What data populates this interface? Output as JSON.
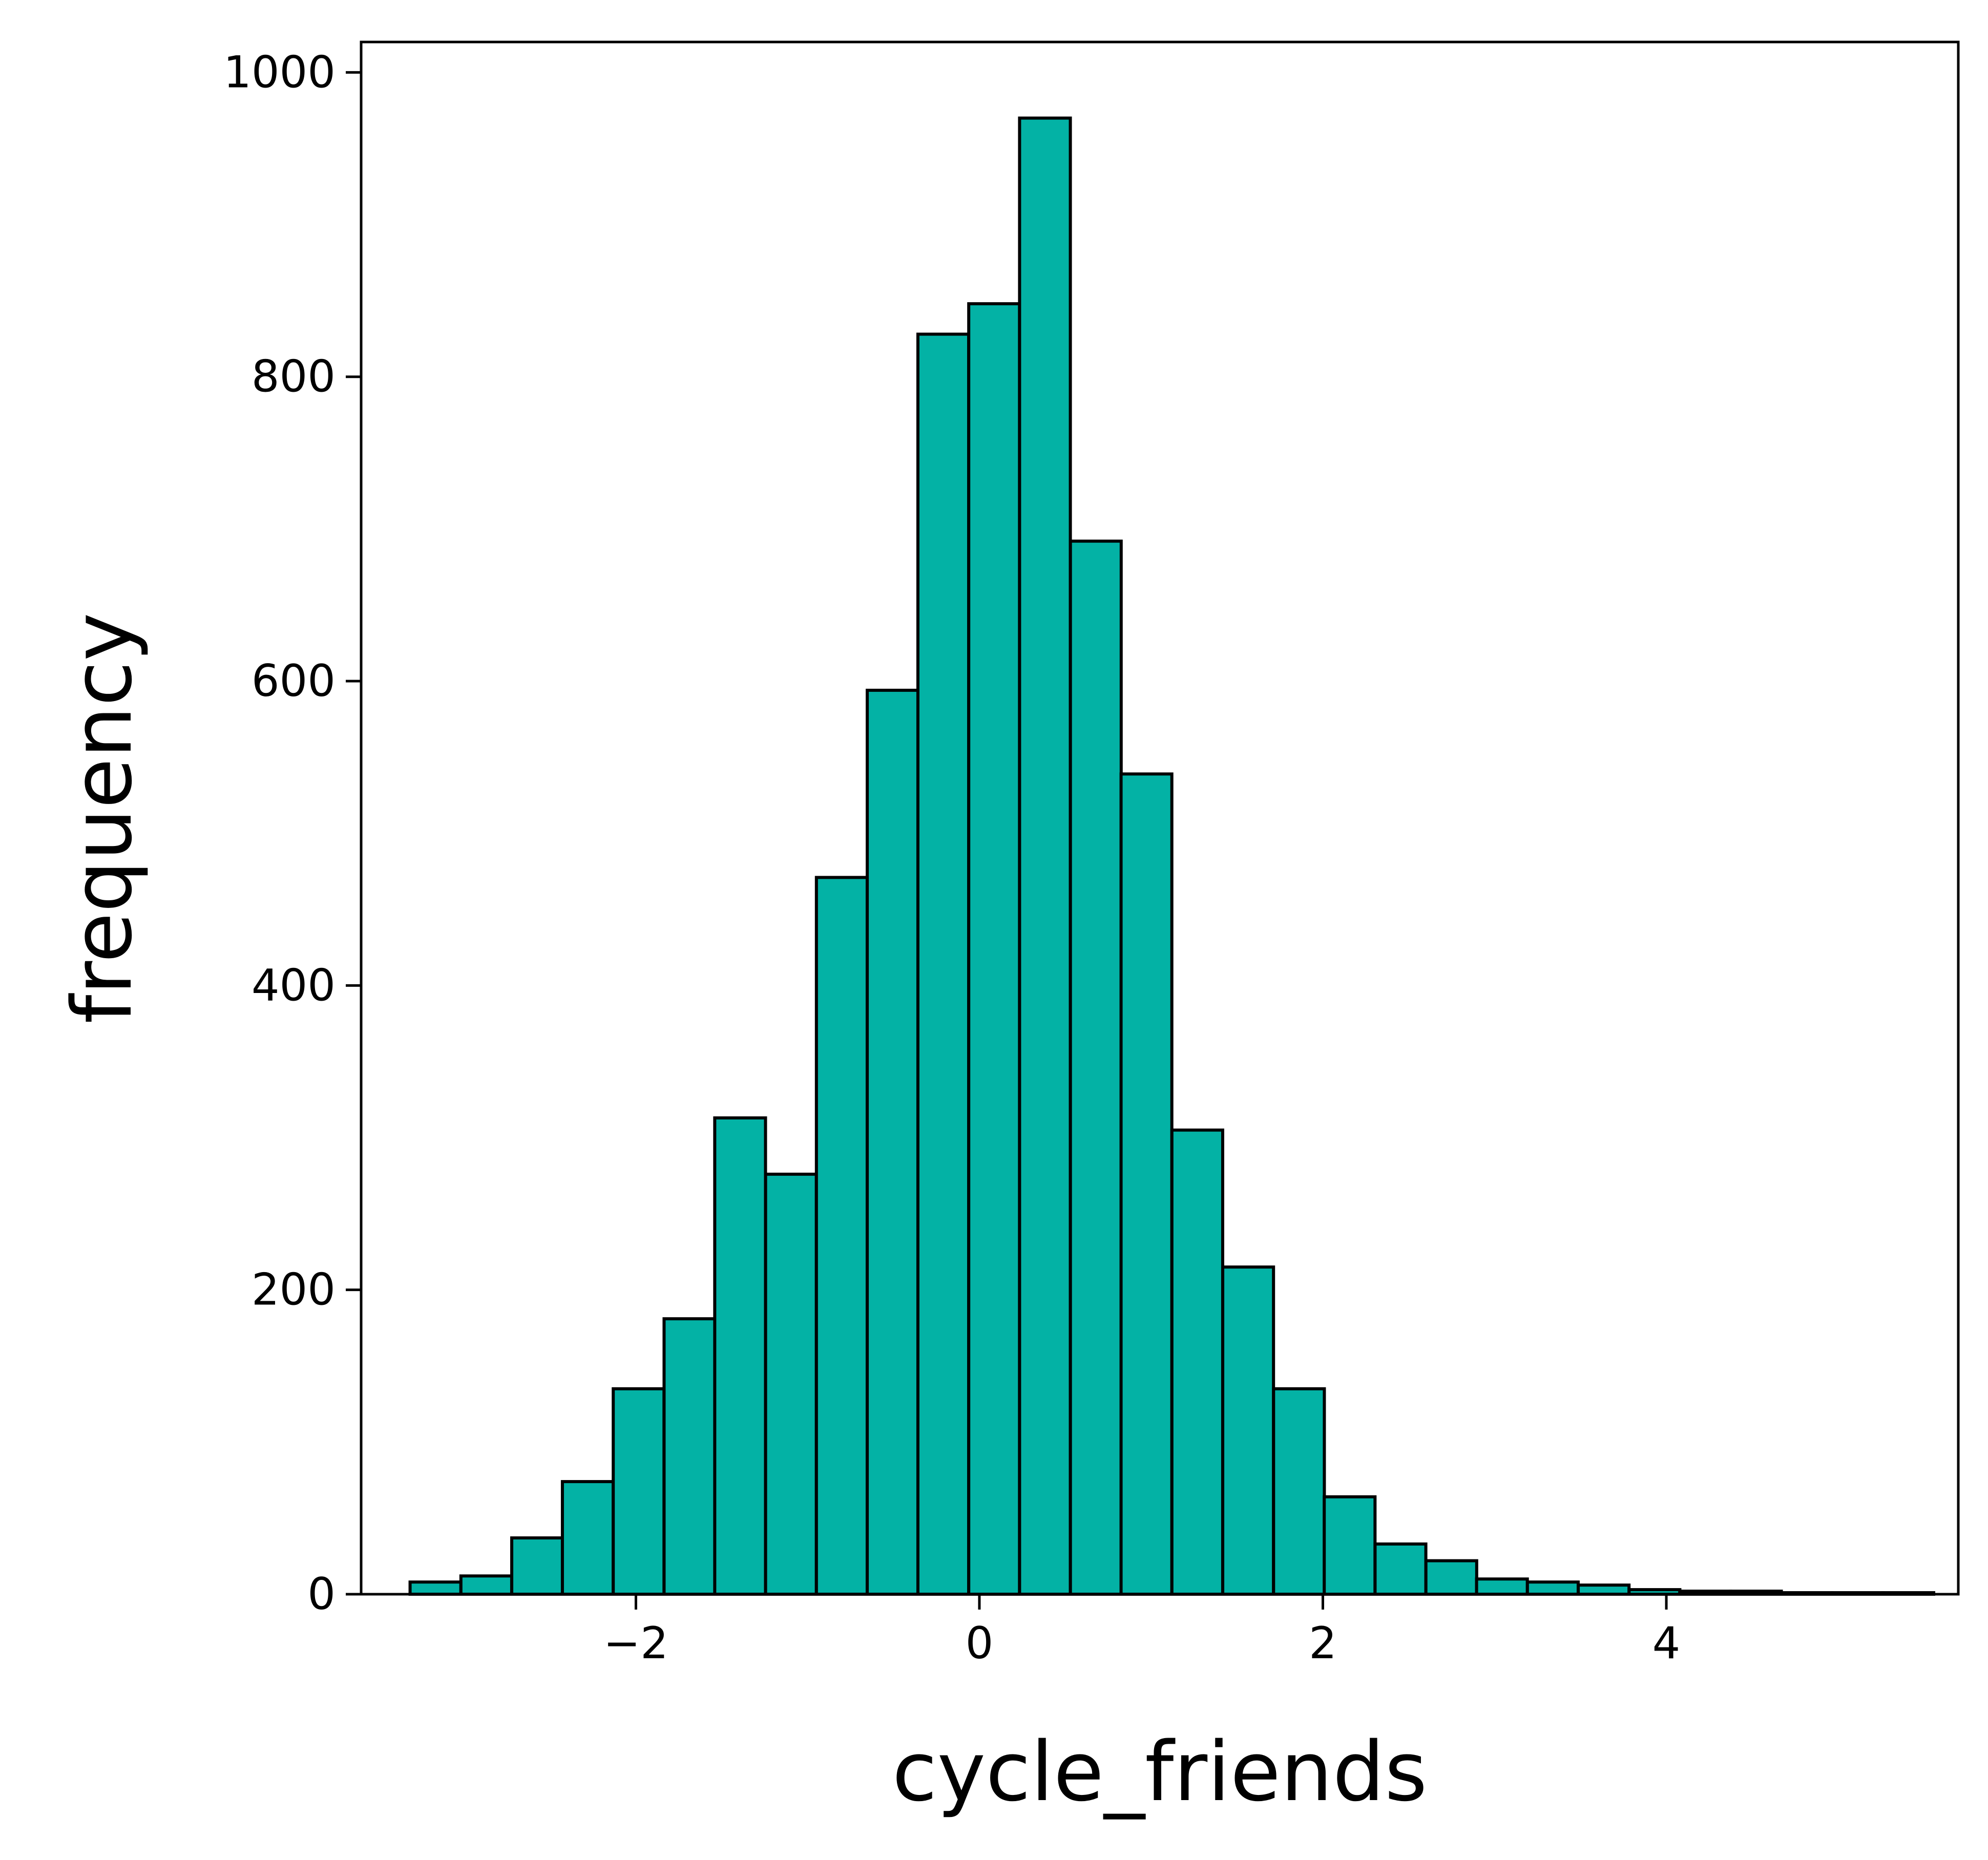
{
  "chart_data": {
    "type": "bar",
    "title": "",
    "xlabel": "cycle_friends",
    "ylabel": "frequency",
    "xlim": [
      -3.6,
      5.7
    ],
    "ylim": [
      0,
      1020
    ],
    "xticks": [
      -2,
      0,
      2,
      4
    ],
    "xtick_labels": [
      "−2",
      "0",
      "2",
      "4"
    ],
    "yticks": [
      0,
      200,
      400,
      600,
      800,
      1000
    ],
    "ytick_labels": [
      "0",
      "200",
      "400",
      "600",
      "800",
      "1000"
    ],
    "grid": false,
    "legend": "none",
    "bar_color": "#03b2a5",
    "edge_color": "#000000",
    "bin_width": 0.2957,
    "bins": [
      {
        "x0": -3.315,
        "count": 8
      },
      {
        "x0": -3.019,
        "count": 12
      },
      {
        "x0": -2.723,
        "count": 37
      },
      {
        "x0": -2.428,
        "count": 74
      },
      {
        "x0": -2.132,
        "count": 135
      },
      {
        "x0": -1.836,
        "count": 181
      },
      {
        "x0": -1.541,
        "count": 313
      },
      {
        "x0": -1.245,
        "count": 276
      },
      {
        "x0": -0.949,
        "count": 471
      },
      {
        "x0": -0.653,
        "count": 594
      },
      {
        "x0": -0.358,
        "count": 828
      },
      {
        "x0": -0.062,
        "count": 848
      },
      {
        "x0": 0.234,
        "count": 970
      },
      {
        "x0": 0.53,
        "count": 692
      },
      {
        "x0": 0.825,
        "count": 539
      },
      {
        "x0": 1.121,
        "count": 305
      },
      {
        "x0": 1.417,
        "count": 215
      },
      {
        "x0": 1.713,
        "count": 135
      },
      {
        "x0": 2.008,
        "count": 64
      },
      {
        "x0": 2.304,
        "count": 33
      },
      {
        "x0": 2.6,
        "count": 22
      },
      {
        "x0": 2.895,
        "count": 10
      },
      {
        "x0": 3.191,
        "count": 8
      },
      {
        "x0": 3.487,
        "count": 6
      },
      {
        "x0": 3.783,
        "count": 3
      },
      {
        "x0": 4.078,
        "count": 2
      },
      {
        "x0": 4.374,
        "count": 2
      },
      {
        "x0": 4.67,
        "count": 1
      },
      {
        "x0": 4.966,
        "count": 1
      },
      {
        "x0": 5.261,
        "count": 1
      }
    ]
  }
}
